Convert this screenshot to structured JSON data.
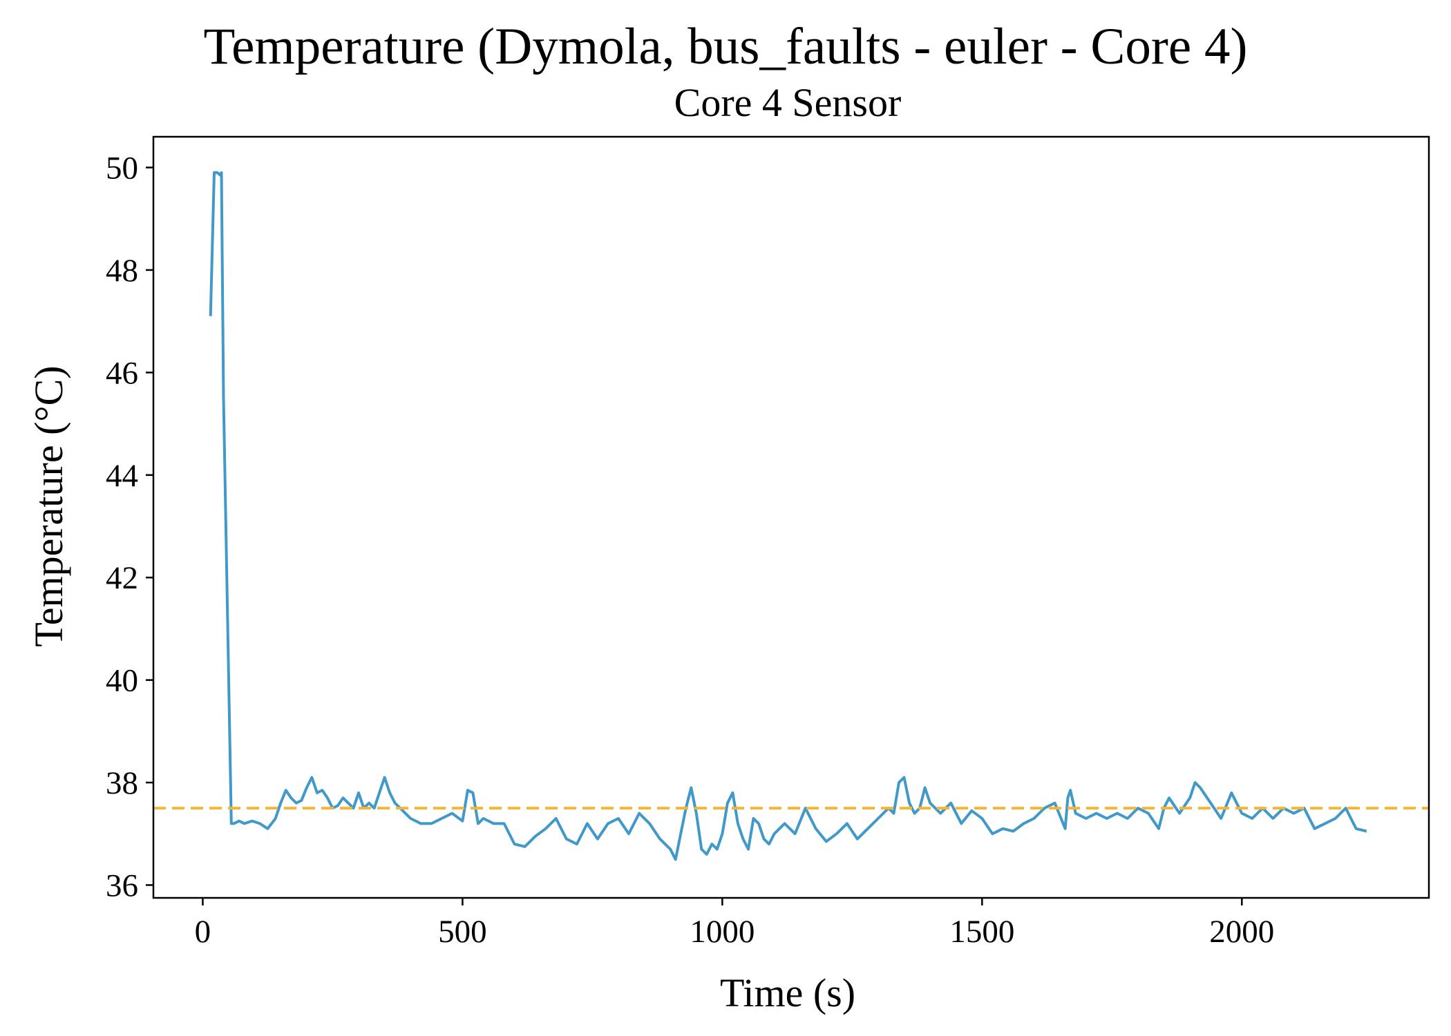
{
  "chart_data": {
    "type": "line",
    "suptitle": "Temperature (Dymola, bus_faults - euler - Core 4)",
    "title": "Core 4 Sensor",
    "xlabel": "Time (s)",
    "ylabel": "Temperature (°C)",
    "xlim": [
      -95,
      2360
    ],
    "ylim": [
      35.75,
      50.6
    ],
    "xticks": [
      0,
      500,
      1000,
      1500,
      2000
    ],
    "yticks": [
      36,
      38,
      40,
      42,
      44,
      46,
      48,
      50
    ],
    "grid": false,
    "legend": "none",
    "reference_line": {
      "y": 37.5,
      "style": "dashed",
      "color": "#f5b638"
    },
    "series": [
      {
        "color": "#4199c9",
        "x": [
          15,
          22,
          28,
          34,
          36,
          40,
          50,
          55,
          60,
          70,
          80,
          95,
          110,
          125,
          140,
          150,
          160,
          170,
          180,
          190,
          200,
          210,
          220,
          230,
          240,
          250,
          260,
          270,
          280,
          290,
          300,
          310,
          320,
          330,
          340,
          350,
          360,
          370,
          380,
          390,
          400,
          420,
          440,
          460,
          480,
          500,
          510,
          520,
          530,
          540,
          560,
          580,
          600,
          620,
          640,
          660,
          680,
          700,
          720,
          740,
          760,
          780,
          800,
          820,
          840,
          860,
          880,
          900,
          910,
          920,
          930,
          940,
          950,
          960,
          970,
          980,
          990,
          1000,
          1010,
          1020,
          1030,
          1040,
          1050,
          1060,
          1070,
          1080,
          1090,
          1100,
          1120,
          1140,
          1160,
          1180,
          1200,
          1220,
          1240,
          1260,
          1280,
          1300,
          1320,
          1330,
          1340,
          1350,
          1360,
          1370,
          1380,
          1390,
          1400,
          1420,
          1440,
          1460,
          1480,
          1500,
          1520,
          1540,
          1560,
          1580,
          1600,
          1620,
          1640,
          1660,
          1665,
          1670,
          1680,
          1700,
          1720,
          1740,
          1760,
          1780,
          1800,
          1820,
          1840,
          1850,
          1860,
          1880,
          1900,
          1910,
          1920,
          1940,
          1960,
          1980,
          2000,
          2020,
          2040,
          2060,
          2080,
          2100,
          2120,
          2140,
          2160,
          2180,
          2200,
          2210,
          2220,
          2240
        ],
        "y": [
          47.1,
          49.9,
          49.9,
          49.85,
          49.9,
          45.5,
          40.0,
          37.2,
          37.2,
          37.25,
          37.2,
          37.25,
          37.2,
          37.1,
          37.3,
          37.6,
          37.85,
          37.7,
          37.6,
          37.65,
          37.9,
          38.1,
          37.8,
          37.85,
          37.7,
          37.5,
          37.55,
          37.7,
          37.6,
          37.5,
          37.8,
          37.5,
          37.6,
          37.5,
          37.8,
          38.1,
          37.8,
          37.6,
          37.5,
          37.4,
          37.3,
          37.2,
          37.2,
          37.3,
          37.4,
          37.25,
          37.85,
          37.8,
          37.2,
          37.3,
          37.2,
          37.2,
          36.8,
          36.75,
          36.95,
          37.1,
          37.3,
          36.9,
          36.8,
          37.2,
          36.9,
          37.2,
          37.3,
          37.0,
          37.4,
          37.2,
          36.9,
          36.7,
          36.5,
          37.0,
          37.5,
          37.9,
          37.4,
          36.7,
          36.6,
          36.8,
          36.7,
          37.0,
          37.6,
          37.8,
          37.2,
          36.9,
          36.7,
          37.3,
          37.2,
          36.9,
          36.8,
          37.0,
          37.2,
          37.0,
          37.5,
          37.1,
          36.85,
          37.0,
          37.2,
          36.9,
          37.1,
          37.3,
          37.5,
          37.4,
          38.0,
          38.1,
          37.6,
          37.4,
          37.5,
          37.9,
          37.6,
          37.4,
          37.6,
          37.2,
          37.45,
          37.3,
          37.0,
          37.1,
          37.05,
          37.2,
          37.3,
          37.5,
          37.6,
          37.1,
          37.7,
          37.85,
          37.4,
          37.3,
          37.4,
          37.3,
          37.4,
          37.3,
          37.5,
          37.4,
          37.1,
          37.5,
          37.7,
          37.4,
          37.7,
          38.0,
          37.9,
          37.6,
          37.3,
          37.8,
          37.4,
          37.3,
          37.5,
          37.3,
          37.5,
          37.4,
          37.5,
          37.1,
          37.2,
          37.3,
          37.5,
          37.3,
          37.1,
          37.05
        ]
      }
    ]
  }
}
